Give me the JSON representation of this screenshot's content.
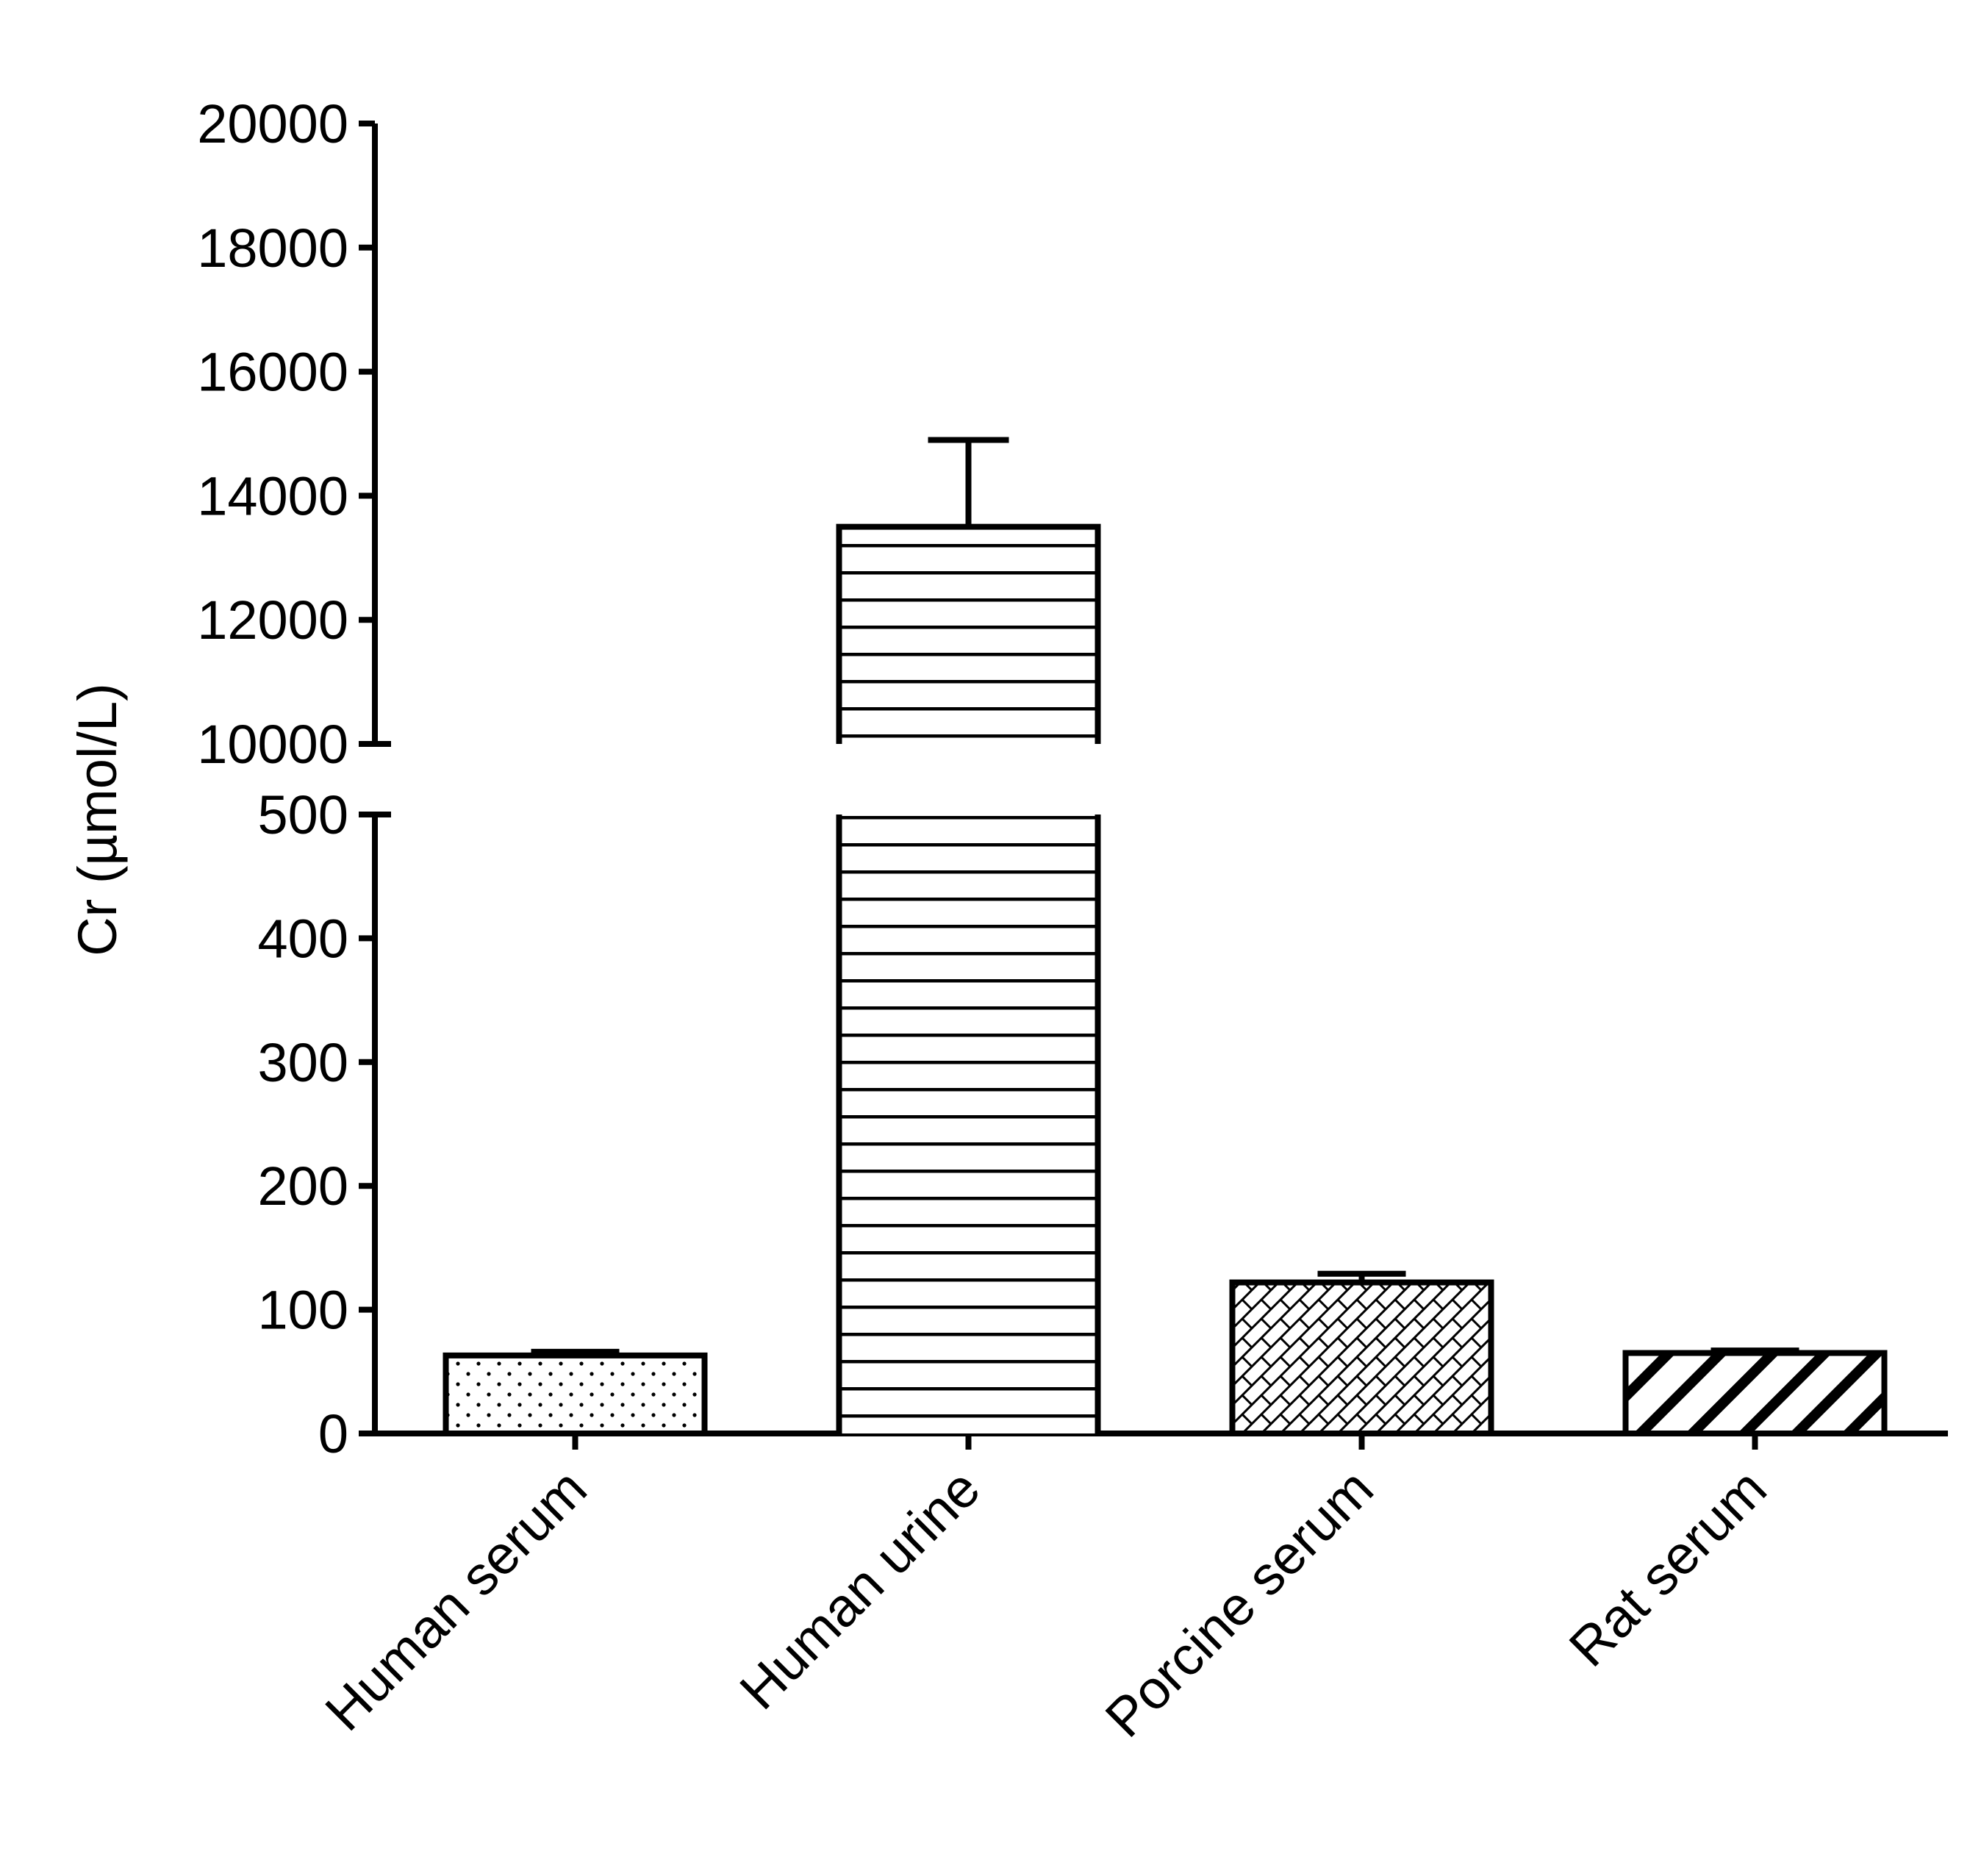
{
  "chart_data": {
    "type": "bar",
    "title": "",
    "xlabel": "",
    "ylabel": "Cr (µmol/L)",
    "categories": [
      "Human serum",
      "Human urine",
      "Porcine serum",
      "Rat serum"
    ],
    "values": [
      63,
      13500,
      122,
      65
    ],
    "error_plus": [
      3,
      1400,
      7,
      2
    ],
    "patterns": [
      "dots",
      "horizontal-lines",
      "crosshatch",
      "diagonal-stripes"
    ],
    "y_axis_broken": true,
    "y_segments": [
      {
        "range": [
          0,
          500
        ],
        "ticks": [
          0,
          100,
          200,
          300,
          400,
          500
        ]
      },
      {
        "range": [
          10000,
          20000
        ],
        "ticks": [
          10000,
          12000,
          14000,
          16000,
          18000,
          20000
        ]
      }
    ],
    "ytick_labels": [
      "0",
      "100",
      "200",
      "300",
      "400",
      "500",
      "10000",
      "12000",
      "14000",
      "16000",
      "18000",
      "20000"
    ],
    "grid": false,
    "legend": "none",
    "colors": {
      "bar_fill": "#ffffff",
      "bar_stroke": "#000000",
      "axis": "#000000"
    }
  }
}
